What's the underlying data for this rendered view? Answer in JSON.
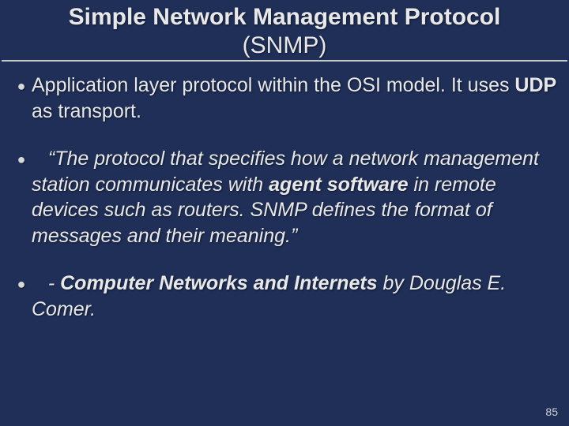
{
  "colors": {
    "background": "#1f2f57",
    "text": "#e8e8e8",
    "rule": "#c8c8c8",
    "pagenum": "#d0d0d0"
  },
  "typography": {
    "family": "Verdana",
    "title_size_pt": 30,
    "body_size_pt": 25,
    "pagenum_size_pt": 14
  },
  "title": {
    "line1": "Simple Network Management Protocol",
    "line2": "(SNMP)"
  },
  "bullets": {
    "b1": {
      "p1": "Application layer protocol within the OSI model. It uses ",
      "p2": "UDP",
      "p3": " as transport."
    },
    "b2": {
      "p1": "“The protocol that specifies how a network management station communicates with ",
      "p2": "agent software",
      "p3": " in remote devices such as routers. SNMP defines the format of messages and their meaning.”"
    },
    "b3": {
      "p1": "- ",
      "p2": "Computer Networks and Internets",
      "p3": " by Douglas E. Comer."
    }
  },
  "page_number": "85"
}
